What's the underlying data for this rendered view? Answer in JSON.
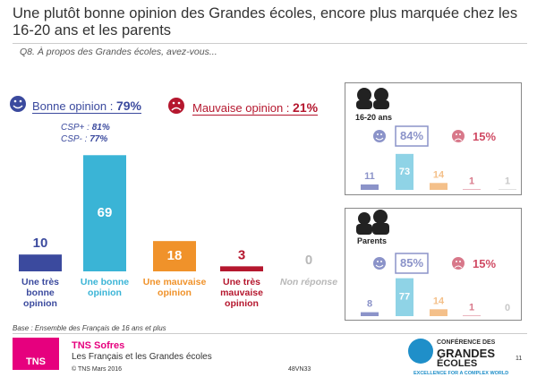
{
  "title": "Une plutôt bonne opinion des Grandes écoles, encore plus marquée chez les 16-20 ans et les parents",
  "question": "Q8. À propos des Grandes écoles, avez-vous...",
  "chart_data": [
    {
      "type": "bar",
      "positive_label": "Bonne opinion :",
      "positive": "79%",
      "negative_label": "Mauvaise opinion :",
      "negative": "21%",
      "subgroups": [
        {
          "name": "CSP+ :",
          "value": "81%"
        },
        {
          "name": "CSP- :",
          "value": "77%"
        }
      ],
      "categories": [
        "Une très bonne opinion",
        "Une bonne opinion",
        "Une mauvaise opinion",
        "Une très mauvaise opinion",
        "Non réponse"
      ],
      "values": [
        10,
        69,
        18,
        3,
        0
      ],
      "colors": [
        "#3b4a9e",
        "#3ab4d6",
        "#f0922a",
        "#b5172e",
        "#b8b8b8"
      ]
    },
    {
      "type": "bar",
      "title": "16-20 ans",
      "positive": "84%",
      "negative": "15%",
      "values": [
        11,
        73,
        14,
        1,
        1
      ],
      "colors": [
        "#8b93c9",
        "#8fd3e6",
        "#f4c08a",
        "#d8788a",
        "#c8c8c8"
      ]
    },
    {
      "type": "bar",
      "title": "Parents",
      "positive": "85%",
      "negative": "15%",
      "values": [
        8,
        77,
        14,
        1,
        0
      ],
      "colors": [
        "#8b93c9",
        "#8fd3e6",
        "#f4c08a",
        "#d8788a",
        "#c8c8c8"
      ]
    }
  ],
  "base": "Base : Ensemble des Français de 16 ans et plus",
  "footer": {
    "brand": "TNS Sofres",
    "study": "Les Français et les Grandes écoles",
    "copyright": "© TNS Mars 2016",
    "code": "48VN33",
    "page": "11",
    "tns_logo": "TNS",
    "cge_logo": [
      "CONFÉRENCE DES",
      "GRANDES",
      "ÉCOLES",
      "EXCELLENCE FOR A COMPLEX WORLD"
    ]
  }
}
